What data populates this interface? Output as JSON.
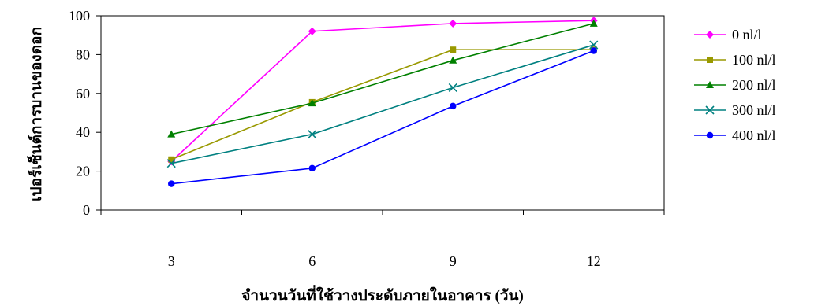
{
  "chart_data": {
    "type": "line",
    "title": "",
    "xlabel": "จำนวนวันที่ใช้วางประดับภายในอาคาร (วัน)",
    "ylabel": "เปอร์เซ็นต์การบานของดอก",
    "categories": [
      "3",
      "6",
      "9",
      "12"
    ],
    "ylim": [
      0,
      100
    ],
    "yticks": [
      0,
      20,
      40,
      60,
      80,
      100
    ],
    "grid": false,
    "legend_position": "right",
    "series": [
      {
        "name": "0 nl/l",
        "color": "#ff00ff",
        "marker": "diamond",
        "values": [
          25,
          92,
          96,
          97.5
        ]
      },
      {
        "name": "100 nl/l",
        "color": "#999900",
        "marker": "square",
        "values": [
          26,
          55.5,
          82.5,
          82.5
        ]
      },
      {
        "name": "200 nl/l",
        "color": "#008000",
        "marker": "triangle",
        "values": [
          39,
          55,
          77,
          96
        ]
      },
      {
        "name": "300 nl/l",
        "color": "#008080",
        "marker": "x",
        "values": [
          24,
          39,
          63,
          85
        ]
      },
      {
        "name": "400 nl/l",
        "color": "#0000ff",
        "marker": "circle",
        "values": [
          13.5,
          21.5,
          53.5,
          82
        ]
      }
    ]
  }
}
